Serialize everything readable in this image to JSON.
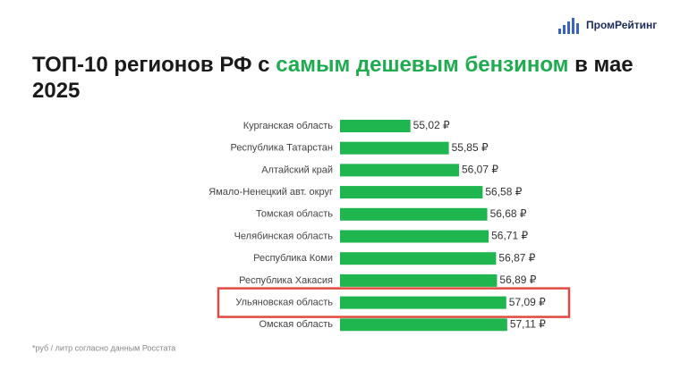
{
  "logo": "ПромРейтинг",
  "chart_data": {
    "type": "bar",
    "orientation": "horizontal",
    "title": [
      "ТОП-10 регионов РФ с",
      "самым дешевым бензином",
      "в мае 2025"
    ],
    "title_accent_color": "#1fab4f",
    "categories": [
      "Курганская область",
      "Республика Татарстан",
      "Алтайский край",
      "Ямало-Ненецкий авт. округ",
      "Томская область",
      "Челябинская область",
      "Республика Коми",
      "Республика Хакасия",
      "Ульяновская область",
      "Омская область"
    ],
    "values": [
      55.02,
      55.85,
      56.07,
      56.58,
      56.68,
      56.71,
      56.87,
      56.89,
      57.09,
      57.11
    ],
    "value_labels": [
      "55,02 ₽",
      "55,85 ₽",
      "56,07 ₽",
      "56,58 ₽",
      "56,68 ₽",
      "56,71 ₽",
      "56,87 ₽",
      "56,89 ₽",
      "57,09 ₽",
      "57,11 ₽"
    ],
    "color": "#1fb54f",
    "xlim": [
      53.5,
      57.5
    ],
    "highlight": 8,
    "highlight_color": "#e04a3f",
    "footnote": "*руб / литр согласно данным Росстата"
  }
}
